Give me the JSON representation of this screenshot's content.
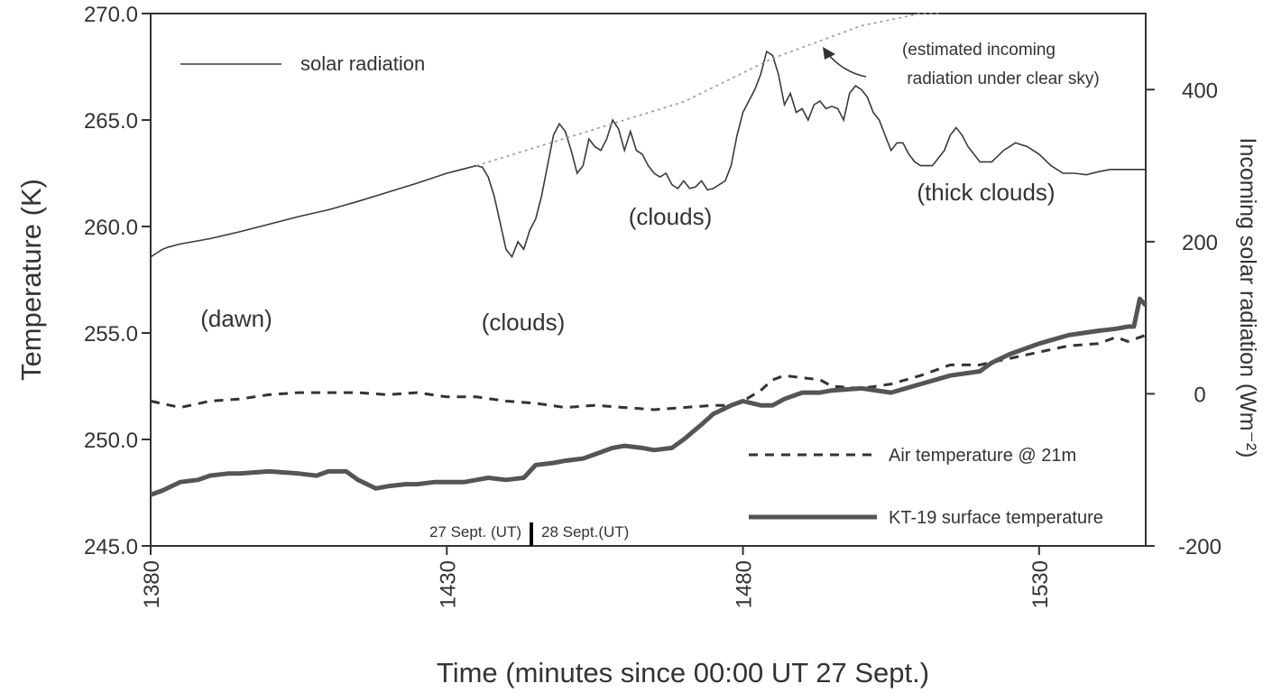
{
  "chart_data": {
    "type": "line",
    "title": "",
    "xlabel": "Time (minutes since 00:00 UT 27 Sept.)",
    "ylabel_left": "Temperature (K)",
    "ylabel_right": "Incoming solar radiation (Wm⁻²)",
    "xlim": [
      1380,
      1548
    ],
    "ylim_left": [
      245,
      270
    ],
    "ylim_right": [
      -200,
      500
    ],
    "x_ticks": [
      1380,
      1430,
      1480,
      1530
    ],
    "x_tick_labels": [
      "1380",
      "1430",
      "1480",
      "1530"
    ],
    "y_left_ticks": [
      245,
      250,
      255,
      260,
      265,
      270
    ],
    "y_left_tick_labels": [
      "245.0",
      "250.0",
      "255.0",
      "260.0",
      "265.0",
      "270.0"
    ],
    "y_right_ticks": [
      -200,
      0,
      200,
      400
    ],
    "y_right_tick_labels": [
      "-200",
      "0",
      "200",
      "400"
    ],
    "grid": false,
    "series": [
      {
        "name": "solar radiation",
        "axis": "right",
        "style": "thin-solid",
        "x": [
          1380,
          1381,
          1382,
          1383,
          1385,
          1390,
          1395,
          1400,
          1405,
          1410,
          1415,
          1420,
          1425,
          1430,
          1435,
          1436,
          1437,
          1438,
          1439,
          1440,
          1441,
          1442,
          1443,
          1444,
          1445,
          1446,
          1447,
          1448,
          1449,
          1450,
          1451,
          1452,
          1453,
          1454,
          1455,
          1456,
          1457,
          1458,
          1459,
          1460,
          1461,
          1462,
          1463,
          1464,
          1465,
          1466,
          1467,
          1468,
          1469,
          1470,
          1471,
          1472,
          1473,
          1474,
          1475,
          1476,
          1477,
          1478,
          1479,
          1480,
          1481,
          1482,
          1483,
          1484,
          1485,
          1486,
          1487,
          1488,
          1489,
          1490,
          1491,
          1492,
          1493,
          1494,
          1495,
          1496,
          1497,
          1498,
          1499,
          1500,
          1501,
          1502,
          1503,
          1504,
          1505,
          1506,
          1507,
          1508,
          1509,
          1510,
          1512,
          1514,
          1515,
          1516,
          1517,
          1518,
          1519,
          1520,
          1522,
          1524,
          1526,
          1528,
          1530,
          1532,
          1534,
          1536,
          1538,
          1540,
          1542,
          1544,
          1548
        ],
        "values": [
          180,
          185,
          190,
          193,
          197,
          204,
          213,
          223,
          233,
          242,
          253,
          265,
          277,
          290,
          300,
          298,
          285,
          260,
          225,
          190,
          180,
          200,
          190,
          215,
          230,
          260,
          300,
          340,
          355,
          345,
          320,
          290,
          300,
          335,
          325,
          320,
          335,
          360,
          348,
          320,
          345,
          320,
          315,
          300,
          290,
          285,
          290,
          275,
          270,
          280,
          270,
          272,
          280,
          268,
          270,
          275,
          280,
          300,
          340,
          370,
          385,
          400,
          420,
          450,
          445,
          420,
          380,
          395,
          370,
          375,
          360,
          380,
          385,
          375,
          378,
          375,
          360,
          395,
          405,
          400,
          390,
          370,
          360,
          340,
          320,
          330,
          330,
          315,
          305,
          300,
          300,
          320,
          340,
          350,
          340,
          325,
          315,
          305,
          305,
          320,
          330,
          325,
          315,
          300,
          290,
          290,
          288,
          292,
          295,
          295,
          295
        ]
      },
      {
        "name": "(estimated incoming radiation under clear sky)",
        "axis": "right",
        "style": "thin-dotted",
        "x": [
          1435,
          1470,
          1485,
          1500,
          1510,
          1513
        ],
        "values": [
          300,
          384,
          441,
          484,
          500,
          500
        ]
      },
      {
        "name": "Air temperature @ 21m",
        "axis": "left",
        "style": "dashed",
        "x": [
          1380,
          1385,
          1390,
          1395,
          1400,
          1405,
          1410,
          1415,
          1420,
          1425,
          1430,
          1435,
          1440,
          1445,
          1450,
          1455,
          1460,
          1465,
          1470,
          1475,
          1478,
          1480,
          1483,
          1485,
          1487,
          1490,
          1493,
          1495,
          1500,
          1505,
          1510,
          1515,
          1520,
          1525,
          1530,
          1535,
          1540,
          1543,
          1545,
          1548
        ],
        "values": [
          251.8,
          251.5,
          251.8,
          251.9,
          252.1,
          252.2,
          252.2,
          252.2,
          252.1,
          252.2,
          252.0,
          252.0,
          251.8,
          251.7,
          251.5,
          251.6,
          251.5,
          251.4,
          251.5,
          251.6,
          251.6,
          251.8,
          252.3,
          252.8,
          253.0,
          252.9,
          252.8,
          252.5,
          252.4,
          252.6,
          253.0,
          253.5,
          253.5,
          253.8,
          254.1,
          254.4,
          254.5,
          254.8,
          254.6,
          254.9
        ]
      },
      {
        "name": "KT-19 surface temperature",
        "axis": "left",
        "style": "thick-solid",
        "x": [
          1380,
          1382,
          1385,
          1388,
          1390,
          1393,
          1395,
          1400,
          1405,
          1408,
          1410,
          1413,
          1415,
          1418,
          1420,
          1423,
          1425,
          1428,
          1430,
          1433,
          1435,
          1437,
          1440,
          1443,
          1445,
          1448,
          1450,
          1453,
          1455,
          1458,
          1460,
          1463,
          1465,
          1468,
          1470,
          1473,
          1475,
          1478,
          1480,
          1483,
          1485,
          1487,
          1490,
          1493,
          1495,
          1500,
          1505,
          1510,
          1515,
          1520,
          1522,
          1525,
          1530,
          1535,
          1540,
          1543,
          1545,
          1546,
          1547,
          1548
        ],
        "values": [
          247.4,
          247.6,
          248.0,
          248.1,
          248.3,
          248.4,
          248.4,
          248.5,
          248.4,
          248.3,
          248.5,
          248.5,
          248.1,
          247.7,
          247.8,
          247.9,
          247.9,
          248.0,
          248.0,
          248.0,
          248.1,
          248.2,
          248.1,
          248.2,
          248.8,
          248.9,
          249.0,
          249.1,
          249.3,
          249.6,
          249.7,
          249.6,
          249.5,
          249.6,
          250.0,
          250.7,
          251.2,
          251.6,
          251.8,
          251.6,
          251.6,
          251.9,
          252.2,
          252.2,
          252.3,
          252.4,
          252.2,
          252.6,
          253.0,
          253.2,
          253.6,
          254.0,
          254.5,
          254.9,
          255.1,
          255.2,
          255.3,
          255.3,
          256.6,
          256.3
        ]
      }
    ],
    "annotations": [
      {
        "text": "(dawn)",
        "x": 1387,
        "y_right": 130
      },
      {
        "text": "(clouds)",
        "x": 1439,
        "y_right": 120
      },
      {
        "text": "(clouds)",
        "x": 1466,
        "y_right": 230
      },
      {
        "text": "(thick clouds)",
        "x": 1517,
        "y_right": 255
      }
    ],
    "estimate_note": {
      "line1": "(estimated incoming",
      "line2": "radiation under clear sky)"
    },
    "legend": {
      "solar": "solar radiation",
      "air": "Air temperature @ 21m",
      "surface": "KT-19 surface temperature"
    },
    "date_marker": {
      "left": "27 Sept. (UT)",
      "right": "28 Sept.(UT)"
    },
    "colors": {
      "line": "#3a3a3a",
      "axis": "#333333",
      "text": "#333333",
      "dotted": "#999999"
    }
  }
}
